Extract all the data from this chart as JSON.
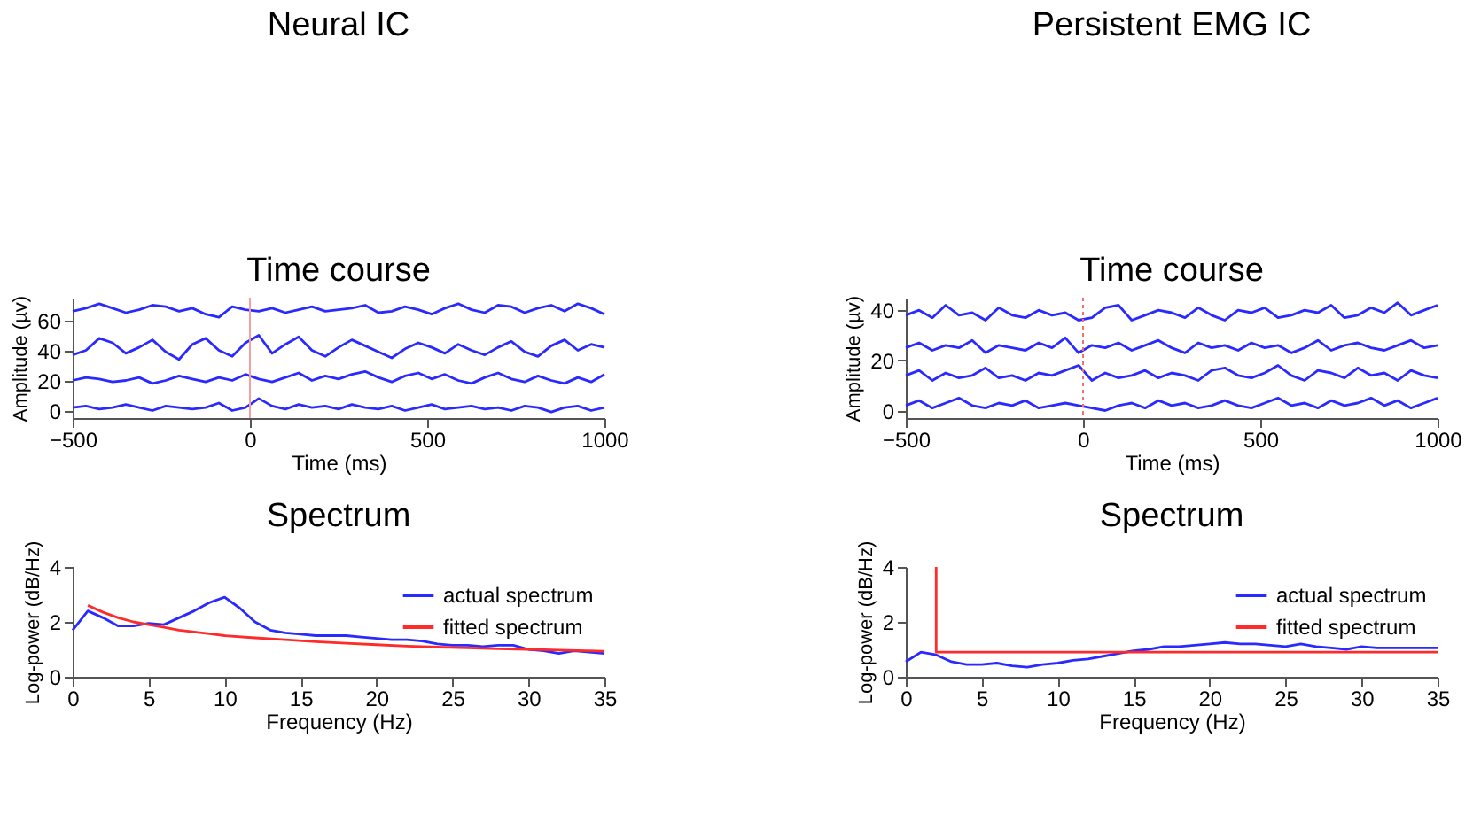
{
  "chart_data": [
    {
      "type": "other",
      "title": "Neural IC"
    },
    {
      "type": "line",
      "title": "Time course",
      "xlabel": "Time (ms)",
      "ylabel": "Amplitude (µv)",
      "xlim": [
        -500,
        1000
      ],
      "xticks": [
        -500,
        0,
        500,
        1000
      ],
      "ylim": [
        -5,
        75
      ],
      "yticks": [
        0,
        20,
        40,
        60
      ],
      "x": [
        -500,
        -462.5,
        -425,
        -387.5,
        -350,
        -312.5,
        -275,
        -237.5,
        -200,
        -162.5,
        -125,
        -87.5,
        -50,
        -12.5,
        25,
        62.5,
        100,
        137.5,
        175,
        212.5,
        250,
        287.5,
        325,
        362.5,
        400,
        437.5,
        475,
        512.5,
        550,
        587.5,
        625,
        662.5,
        700,
        737.5,
        775,
        812.5,
        850,
        887.5,
        925,
        962.5,
        1000
      ],
      "ref_lines": [
        {
          "axis": "x",
          "value": 0,
          "color": "#f4a0a0",
          "line_style": "solid"
        }
      ],
      "series": [
        {
          "color": "#2a2aff",
          "values": [
            66,
            68,
            71,
            68,
            65,
            67,
            70,
            69,
            66,
            68,
            64,
            62,
            69,
            67,
            66,
            68,
            65,
            67,
            69,
            66,
            67,
            68,
            70,
            65,
            66,
            69,
            67,
            64,
            68,
            71,
            67,
            65,
            70,
            69,
            65,
            68,
            70,
            66,
            71,
            68,
            64
          ]
        },
        {
          "color": "#2a2aff",
          "values": [
            37,
            40,
            48,
            45,
            38,
            42,
            47,
            39,
            34,
            44,
            48,
            40,
            36,
            45,
            50,
            38,
            44,
            49,
            40,
            36,
            42,
            47,
            43,
            39,
            35,
            41,
            45,
            42,
            38,
            44,
            40,
            37,
            42,
            46,
            39,
            36,
            43,
            47,
            40,
            44,
            42
          ]
        },
        {
          "color": "#2a2aff",
          "values": [
            20,
            22,
            21,
            19,
            20,
            22,
            18,
            20,
            23,
            21,
            19,
            22,
            20,
            24,
            21,
            19,
            22,
            25,
            20,
            23,
            21,
            24,
            26,
            22,
            19,
            23,
            25,
            21,
            24,
            20,
            18,
            22,
            25,
            21,
            19,
            23,
            20,
            18,
            22,
            19,
            24
          ]
        },
        {
          "color": "#2a2aff",
          "values": [
            2,
            3,
            1,
            2,
            4,
            2,
            0,
            3,
            2,
            1,
            2,
            5,
            0,
            2,
            8,
            3,
            1,
            4,
            2,
            3,
            1,
            4,
            2,
            1,
            3,
            0,
            2,
            4,
            1,
            2,
            3,
            1,
            2,
            0,
            3,
            2,
            -1,
            2,
            3,
            0,
            2
          ]
        }
      ]
    },
    {
      "type": "line",
      "title": "Spectrum",
      "xlabel": "Frequency (Hz)",
      "ylabel": "Log-power (dB/Hz)",
      "xlim": [
        0,
        35
      ],
      "xticks": [
        0,
        5,
        10,
        15,
        20,
        25,
        30,
        35
      ],
      "ylim": [
        0,
        4
      ],
      "yticks": [
        0,
        2,
        4
      ],
      "legend": "top right",
      "series": [
        {
          "name": "actual spectrum",
          "color": "#2a2aff",
          "x": [
            0,
            1,
            2,
            3,
            4,
            5,
            6,
            7,
            8,
            9,
            10,
            11,
            12,
            13,
            14,
            15,
            16,
            17,
            18,
            19,
            20,
            21,
            22,
            23,
            24,
            25,
            26,
            27,
            28,
            29,
            30,
            31,
            32,
            33,
            34,
            35
          ],
          "values": [
            1.7,
            2.4,
            2.15,
            1.85,
            1.85,
            1.95,
            1.9,
            2.15,
            2.4,
            2.7,
            2.9,
            2.5,
            2.0,
            1.7,
            1.6,
            1.55,
            1.5,
            1.5,
            1.5,
            1.45,
            1.4,
            1.35,
            1.35,
            1.3,
            1.2,
            1.15,
            1.15,
            1.1,
            1.15,
            1.15,
            1.0,
            0.95,
            0.85,
            0.95,
            0.9,
            0.85
          ]
        },
        {
          "name": "fitted spectrum",
          "color": "#ff2a2a",
          "x": [
            1,
            2,
            3,
            4,
            5,
            6,
            7,
            8,
            9,
            10,
            12,
            14,
            16,
            18,
            20,
            22,
            24,
            26,
            28,
            30,
            32,
            35
          ],
          "values": [
            2.6,
            2.35,
            2.15,
            2.0,
            1.9,
            1.8,
            1.7,
            1.63,
            1.57,
            1.5,
            1.42,
            1.35,
            1.28,
            1.22,
            1.17,
            1.12,
            1.08,
            1.05,
            1.02,
            1.0,
            0.97,
            0.93
          ]
        }
      ]
    },
    {
      "type": "other",
      "title": "Persistent EMG IC"
    },
    {
      "type": "line",
      "title": "Time course",
      "xlabel": "Time (ms)",
      "ylabel": "Amplitude (µv)",
      "xlim": [
        -500,
        1000
      ],
      "xticks": [
        -500,
        0,
        500,
        1000
      ],
      "ylim": [
        -3,
        45
      ],
      "yticks": [
        0,
        20,
        40
      ],
      "x": [
        -500,
        -462.5,
        -425,
        -387.5,
        -350,
        -312.5,
        -275,
        -237.5,
        -200,
        -162.5,
        -125,
        -87.5,
        -50,
        -12.5,
        25,
        62.5,
        100,
        137.5,
        175,
        212.5,
        250,
        287.5,
        325,
        362.5,
        400,
        437.5,
        475,
        512.5,
        550,
        587.5,
        625,
        662.5,
        700,
        737.5,
        775,
        812.5,
        850,
        887.5,
        925,
        962.5,
        1000
      ],
      "ref_lines": [
        {
          "axis": "x",
          "value": 0,
          "color": "#f47070",
          "line_style": "dotted"
        }
      ],
      "series": [
        {
          "color": "#2a2aff",
          "values": [
            38,
            40,
            37,
            42,
            38,
            39,
            36,
            41,
            38,
            37,
            40,
            38,
            39,
            36,
            37,
            41,
            42,
            36,
            38,
            40,
            39,
            37,
            41,
            38,
            36,
            40,
            39,
            41,
            37,
            38,
            40,
            39,
            42,
            37,
            38,
            41,
            39,
            43,
            38,
            40,
            42
          ]
        },
        {
          "color": "#2a2aff",
          "values": [
            25,
            27,
            24,
            26,
            25,
            28,
            23,
            26,
            25,
            24,
            27,
            25,
            29,
            23,
            26,
            25,
            27,
            24,
            26,
            28,
            25,
            23,
            27,
            25,
            26,
            24,
            27,
            25,
            26,
            23,
            25,
            28,
            24,
            26,
            27,
            25,
            24,
            26,
            28,
            25,
            26
          ]
        },
        {
          "color": "#2a2aff",
          "values": [
            14,
            16,
            12,
            15,
            13,
            14,
            17,
            13,
            14,
            12,
            15,
            14,
            16,
            18,
            12,
            15,
            13,
            14,
            16,
            13,
            15,
            14,
            12,
            16,
            17,
            14,
            13,
            15,
            18,
            14,
            12,
            16,
            15,
            13,
            17,
            14,
            15,
            12,
            16,
            14,
            13
          ]
        },
        {
          "color": "#2a2aff",
          "values": [
            2,
            4,
            1,
            3,
            5,
            2,
            1,
            3,
            2,
            4,
            1,
            2,
            3,
            2,
            1,
            0,
            2,
            3,
            1,
            4,
            2,
            3,
            1,
            2,
            4,
            2,
            1,
            3,
            5,
            2,
            3,
            1,
            4,
            2,
            3,
            5,
            2,
            4,
            1,
            3,
            5
          ]
        }
      ]
    },
    {
      "type": "line",
      "title": "Spectrum",
      "xlabel": "Frequency (Hz)",
      "ylabel": "Log-power (dB/Hz)",
      "xlim": [
        0,
        35
      ],
      "xticks": [
        0,
        5,
        10,
        15,
        20,
        25,
        30,
        35
      ],
      "ylim": [
        0,
        4
      ],
      "yticks": [
        0,
        2,
        4
      ],
      "legend": "top right",
      "series": [
        {
          "name": "actual spectrum",
          "color": "#2a2aff",
          "x": [
            0,
            1,
            2,
            3,
            4,
            5,
            6,
            7,
            8,
            9,
            10,
            11,
            12,
            13,
            14,
            15,
            16,
            17,
            18,
            19,
            20,
            21,
            22,
            23,
            24,
            25,
            26,
            27,
            28,
            29,
            30,
            31,
            32,
            33,
            34,
            35
          ],
          "values": [
            0.55,
            0.9,
            0.8,
            0.55,
            0.45,
            0.45,
            0.5,
            0.4,
            0.35,
            0.45,
            0.5,
            0.6,
            0.65,
            0.75,
            0.85,
            0.95,
            1.0,
            1.1,
            1.1,
            1.15,
            1.2,
            1.25,
            1.2,
            1.2,
            1.15,
            1.1,
            1.2,
            1.1,
            1.05,
            1.0,
            1.1,
            1.05,
            1.05,
            1.05,
            1.05,
            1.05
          ]
        },
        {
          "name": "fitted spectrum",
          "color": "#ff2a2a",
          "x": [
            2,
            2,
            35
          ],
          "values": [
            4,
            0.9,
            0.9
          ]
        }
      ]
    }
  ]
}
